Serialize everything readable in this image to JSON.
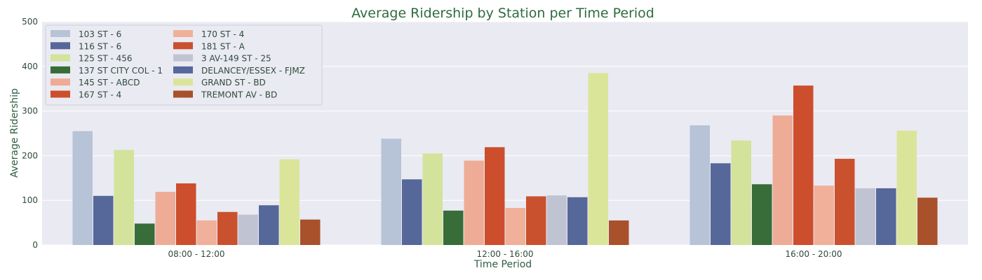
{
  "chart_data": {
    "type": "bar",
    "title": "Average Ridership by Station per Time Period",
    "xlabel": "Time Period",
    "ylabel": "Average Ridership",
    "ylim": [
      0,
      500
    ],
    "yticks": [
      0,
      100,
      200,
      300,
      400,
      500
    ],
    "grid": true,
    "legend_position": "top-left",
    "legend_columns": 2,
    "categories": [
      "08:00 - 12:00",
      "12:00 - 16:00",
      "16:00 - 20:00"
    ],
    "series": [
      {
        "name": "103 ST - 6",
        "color": "#b7c3d7",
        "values": [
          255,
          238,
          268
        ]
      },
      {
        "name": "116 ST - 6",
        "color": "#56679a",
        "values": [
          110,
          147,
          183
        ]
      },
      {
        "name": "125 ST - 456",
        "color": "#d3e39b",
        "values": [
          213,
          205,
          234
        ]
      },
      {
        "name": "137 ST CITY COL - 1",
        "color": "#386c38",
        "values": [
          48,
          77,
          136
        ]
      },
      {
        "name": "145 ST - ABCD",
        "color": "#eeac97",
        "values": [
          119,
          189,
          290
        ]
      },
      {
        "name": "167 ST - 4",
        "color": "#cc4e2c",
        "values": [
          138,
          219,
          357
        ]
      },
      {
        "name": "170 ST - 4",
        "color": "#f0b09a",
        "values": [
          55,
          83,
          133
        ]
      },
      {
        "name": "181 ST - A",
        "color": "#c9512d",
        "values": [
          74,
          109,
          193
        ]
      },
      {
        "name": "3 AV-149 ST - 25",
        "color": "#c0c3d2",
        "values": [
          68,
          111,
          127
        ]
      },
      {
        "name": "DELANCEY/ESSEX - FJMZ",
        "color": "#56679a",
        "values": [
          89,
          107,
          127
        ]
      },
      {
        "name": "GRAND ST - BD",
        "color": "#dbe59a",
        "values": [
          192,
          385,
          256
        ]
      },
      {
        "name": "TREMONT AV - BD",
        "color": "#a8512b",
        "values": [
          57,
          55,
          106
        ]
      }
    ]
  }
}
